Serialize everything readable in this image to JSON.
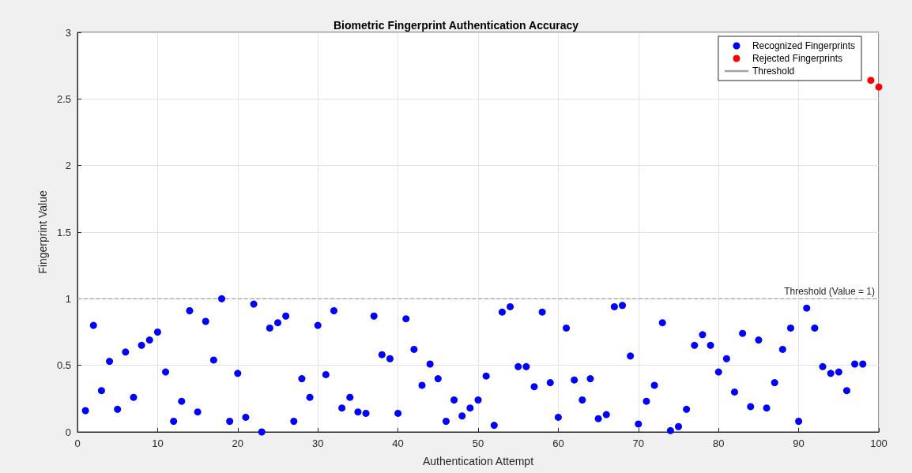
{
  "chart_data": {
    "type": "scatter",
    "title": "Biometric Fingerprint Authentication Accuracy",
    "xlabel": "Authentication Attempt",
    "ylabel": "Fingerprint Value",
    "xlim": [
      0,
      100
    ],
    "xticks": [
      0,
      10,
      20,
      30,
      40,
      50,
      60,
      70,
      80,
      90,
      100
    ],
    "ylim": [
      0,
      3
    ],
    "yticks": [
      0,
      0.5,
      1,
      1.5,
      2,
      2.5,
      3
    ],
    "grid": true,
    "legend": "top right",
    "marker": "circle",
    "series": [
      {
        "name": "Recognized Fingerprints",
        "color": "#0000ff",
        "x": [
          1,
          2,
          3,
          4,
          5,
          6,
          7,
          8,
          9,
          10,
          11,
          12,
          13,
          14,
          15,
          16,
          17,
          18,
          19,
          20,
          21,
          22,
          23,
          24,
          25,
          26,
          27,
          28,
          29,
          30,
          31,
          32,
          33,
          34,
          35,
          36,
          37,
          38,
          39,
          40,
          41,
          42,
          43,
          44,
          45,
          46,
          47,
          48,
          49,
          50,
          51,
          52,
          53,
          54,
          55,
          56,
          57,
          58,
          59,
          60,
          61,
          62,
          63,
          64,
          65,
          66,
          67,
          68,
          69,
          70,
          71,
          72,
          73,
          74,
          75,
          76,
          77,
          78,
          79,
          80,
          81,
          82,
          83,
          84,
          85,
          86,
          87,
          88,
          89,
          90,
          91,
          92,
          93,
          94,
          95,
          96,
          97,
          98
        ],
        "values": [
          0.16,
          0.8,
          0.31,
          0.53,
          0.17,
          0.6,
          0.26,
          0.65,
          0.69,
          0.75,
          0.45,
          0.08,
          0.23,
          0.91,
          0.15,
          0.83,
          0.54,
          1.0,
          0.08,
          0.44,
          0.11,
          0.96,
          0.0,
          0.78,
          0.82,
          0.87,
          0.08,
          0.4,
          0.26,
          0.8,
          0.43,
          0.91,
          0.18,
          0.26,
          0.15,
          0.14,
          0.87,
          0.58,
          0.55,
          0.14,
          0.85,
          0.62,
          0.35,
          0.51,
          0.4,
          0.08,
          0.24,
          0.12,
          0.18,
          0.24,
          0.42,
          0.05,
          0.9,
          0.94,
          0.49,
          0.49,
          0.34,
          0.9,
          0.37,
          0.11,
          0.78,
          0.39,
          0.24,
          0.4,
          0.1,
          0.13,
          0.94,
          0.95,
          0.57,
          0.06,
          0.23,
          0.35,
          0.82,
          0.01,
          0.04,
          0.17,
          0.65,
          0.73,
          0.65,
          0.45,
          0.55,
          0.3,
          0.74,
          0.19,
          0.69,
          0.18,
          0.37,
          0.62,
          0.78,
          0.08,
          0.93,
          0.78,
          0.49,
          0.44,
          0.45,
          0.31,
          0.51,
          0.51
        ]
      },
      {
        "name": "Rejected Fingerprints",
        "color": "#ff0000",
        "x": [
          99,
          100
        ],
        "values": [
          2.64,
          2.59
        ]
      },
      {
        "name": "Threshold",
        "type": "line",
        "color": "#a0a0a0",
        "line_style": "dashed",
        "marker": "none",
        "x": [
          0,
          100
        ],
        "values": [
          1,
          1
        ]
      }
    ],
    "annotations": [
      {
        "text": "Threshold (Value = 1)",
        "x": 100,
        "y": 1
      }
    ]
  }
}
